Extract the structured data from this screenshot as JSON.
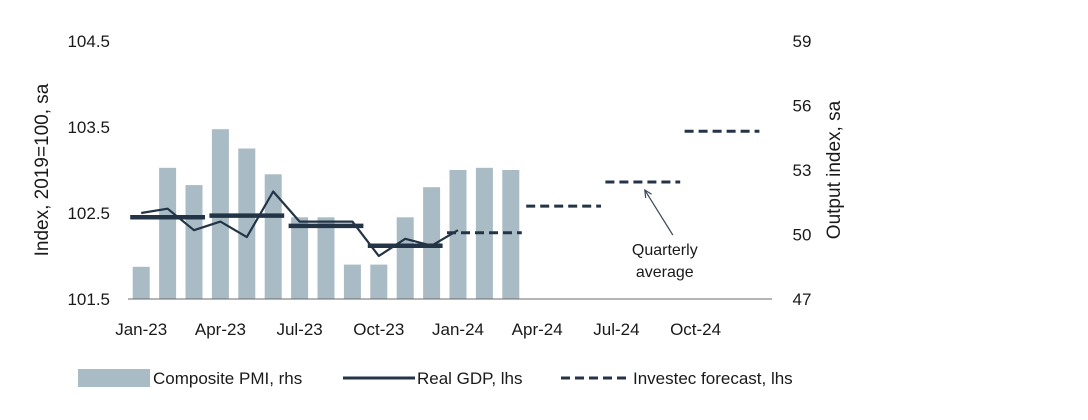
{
  "chart_data": {
    "type": "bar",
    "title": "",
    "categories": [
      "Jan-23",
      "Feb-23",
      "Mar-23",
      "Apr-23",
      "May-23",
      "Jun-23",
      "Jul-23",
      "Aug-23",
      "Sep-23",
      "Oct-23",
      "Nov-23",
      "Dec-23",
      "Jan-24",
      "Feb-24",
      "Mar-24",
      "Apr-24",
      "May-24",
      "Jun-24",
      "Jul-24",
      "Aug-24",
      "Sep-24",
      "Oct-24",
      "Nov-24",
      "Dec-24"
    ],
    "x_tick_labels": [
      "Jan-23",
      "Apr-23",
      "Jul-23",
      "Oct-23",
      "Jan-24",
      "Apr-24",
      "Jul-24",
      "Oct-24"
    ],
    "ylabel_left": "Index, 2019=100, sa",
    "ylabel_right": "Output index, sa",
    "ylim_left": [
      101.5,
      104.5
    ],
    "yticks_left": [
      "101.5",
      "102.5",
      "103.5",
      "104.5"
    ],
    "ylim_right": [
      47,
      59
    ],
    "yticks_right": [
      "47",
      "50",
      "53",
      "56",
      "59"
    ],
    "grid": false,
    "legend_position": "bottom",
    "series": [
      {
        "name": "Composite PMI, rhs",
        "type": "bar",
        "axis": "right",
        "color": "#a9bcc5",
        "values": [
          48.5,
          53.1,
          52.3,
          54.9,
          54.0,
          52.8,
          50.8,
          50.8,
          48.6,
          48.6,
          50.8,
          52.2,
          53.0,
          53.1,
          53.0,
          null,
          null,
          null,
          null,
          null,
          null,
          null,
          null,
          null
        ]
      },
      {
        "name": "Real GDP, lhs",
        "type": "line",
        "axis": "left",
        "color": "#243447",
        "values": [
          102.5,
          102.55,
          102.3,
          102.4,
          102.22,
          102.75,
          102.4,
          102.4,
          102.4,
          102.0,
          102.2,
          102.12,
          102.3,
          null,
          null,
          null,
          null,
          null,
          null,
          null,
          null,
          null,
          null,
          null
        ]
      },
      {
        "name": "Quarterly average",
        "type": "step",
        "axis": "left",
        "color": "#243447",
        "values": [
          102.45,
          102.45,
          102.45,
          102.47,
          102.47,
          102.47,
          102.35,
          102.35,
          102.35,
          102.12,
          102.12,
          102.12,
          null,
          null,
          null,
          null,
          null,
          null,
          null,
          null,
          null,
          null,
          null,
          null
        ]
      },
      {
        "name": "Investec forecast, lhs",
        "type": "dashed-step",
        "axis": "left",
        "color": "#243447",
        "values": [
          null,
          null,
          null,
          null,
          null,
          null,
          null,
          null,
          null,
          null,
          null,
          null,
          102.27,
          102.27,
          102.27,
          102.58,
          102.58,
          102.58,
          102.86,
          102.86,
          102.86,
          103.45,
          103.45,
          103.45
        ]
      }
    ],
    "annotations": [
      {
        "text_lines": [
          "Quarterly",
          "average"
        ],
        "points_to_category": "Aug-24",
        "points_to_value": 102.86
      }
    ]
  },
  "legend": [
    {
      "label": "Composite PMI, rhs",
      "style": "bar"
    },
    {
      "label": "Real GDP, lhs",
      "style": "line"
    },
    {
      "label": "Investec forecast, lhs",
      "style": "dashed"
    }
  ]
}
